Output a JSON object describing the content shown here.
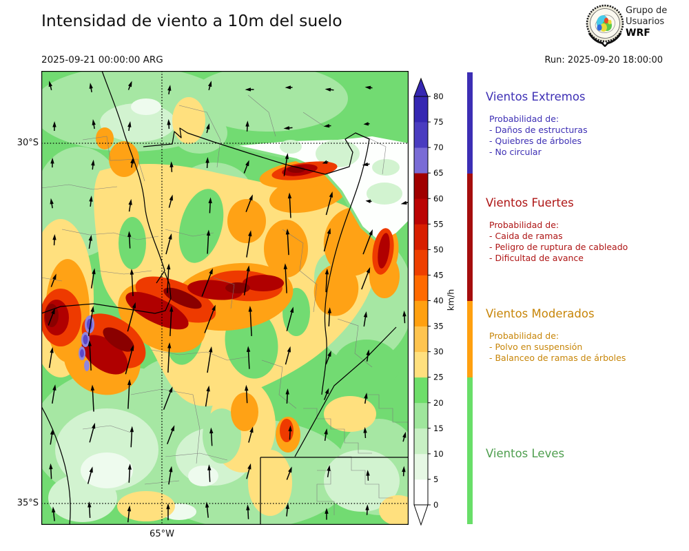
{
  "header": {
    "title": "Intensidad de viento a 10m del suelo",
    "valid_time": "2025-09-21 00:00:00 ARG",
    "run_label": "Run: 2025-09-20 18:00:00",
    "logo": {
      "line1": "Grupo de",
      "line2": "Usuarios",
      "line3": "WRF"
    }
  },
  "map": {
    "lat_label_top": "30°S",
    "lat_label_bottom": "35°S",
    "lon_label": "65°W"
  },
  "colorbar": {
    "unit": "km/h",
    "ticks": [
      "0",
      "5",
      "10",
      "15",
      "20",
      "25",
      "30",
      "35",
      "40",
      "45",
      "50",
      "55",
      "60",
      "65",
      "70",
      "75",
      "80"
    ],
    "segment_colors_bottom_to_top": [
      "#ffffff",
      "#e6f8e4",
      "#c8f0c4",
      "#9fe69c",
      "#6ede6a",
      "#ffe07e",
      "#fec44f",
      "#ffa010",
      "#ff6a00",
      "#ee3f00",
      "#d81e00",
      "#bb0404",
      "#a00000",
      "#7a6cd6",
      "#4a3cc0",
      "#3527b2"
    ]
  },
  "legend": {
    "strip": {
      "extremos_color": "#3c2eb4",
      "fuertes_color": "#a50d0d",
      "moderados_color": "#ffa010",
      "leves_color": "#68de68"
    },
    "sections": [
      {
        "title": "Vientos Extremos",
        "color": "#3c2eb4",
        "intro": "Probabilidad de:",
        "items": [
          "- Daños de estructuras",
          "- Quiebres de árboles",
          "- No circular"
        ]
      },
      {
        "title": "Vientos Fuertes",
        "color": "#ae1414",
        "intro": "Probabilidad de:",
        "items": [
          "- Caida de ramas",
          "- Peligro de ruptura de cableado",
          "- Dificultad de avance"
        ]
      },
      {
        "title": "Vientos Moderados",
        "color": "#c78508",
        "intro": "Probabilidad de:",
        "items": [
          "- Polvo en suspensión",
          "- Balanceo de ramas de árboles"
        ]
      },
      {
        "title": "Vientos Leves",
        "color": "#4e9e4e",
        "intro": "",
        "items": []
      }
    ]
  }
}
